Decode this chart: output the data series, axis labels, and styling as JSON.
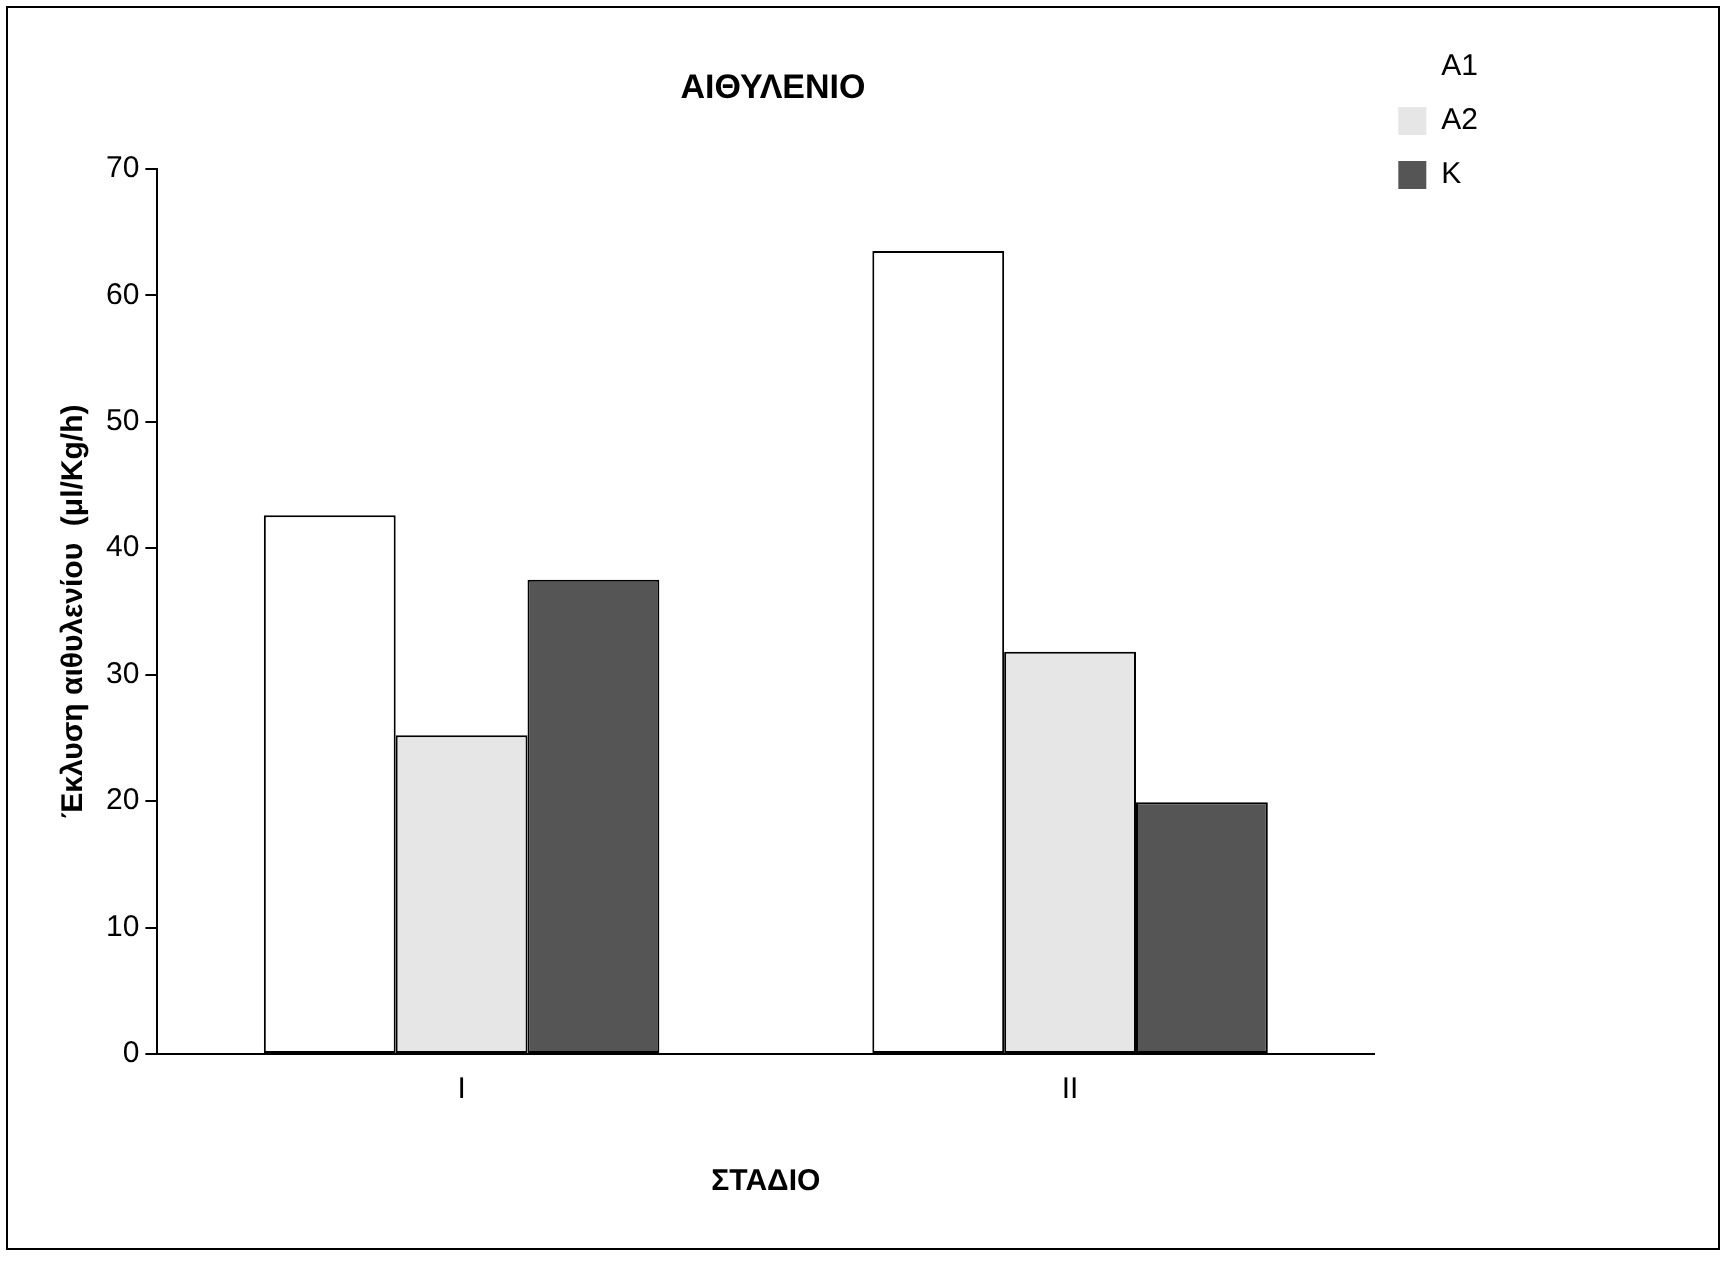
{
  "chart_data": {
    "type": "bar",
    "title": "ΑΙΘΥΛΕΝΙΟ",
    "xlabel": "ΣΤΑΔΙΟ",
    "ylabel": "Έκλυση αιθυλενίου  (μl/Kg/h)",
    "categories": [
      "I",
      "II"
    ],
    "series": [
      {
        "name": "A1",
        "color": "#ffffff",
        "values": [
          42.6,
          63.5
        ]
      },
      {
        "name": "A2",
        "color": "#e6e6e6",
        "values": [
          25.2,
          31.8
        ]
      },
      {
        "name": "K",
        "color": "#555555",
        "values": [
          37.5,
          19.9
        ]
      }
    ],
    "ylim": [
      0,
      70
    ],
    "yticks": [
      0,
      10,
      20,
      30,
      40,
      50,
      60,
      70
    ],
    "grid": false,
    "legend": "top right"
  }
}
